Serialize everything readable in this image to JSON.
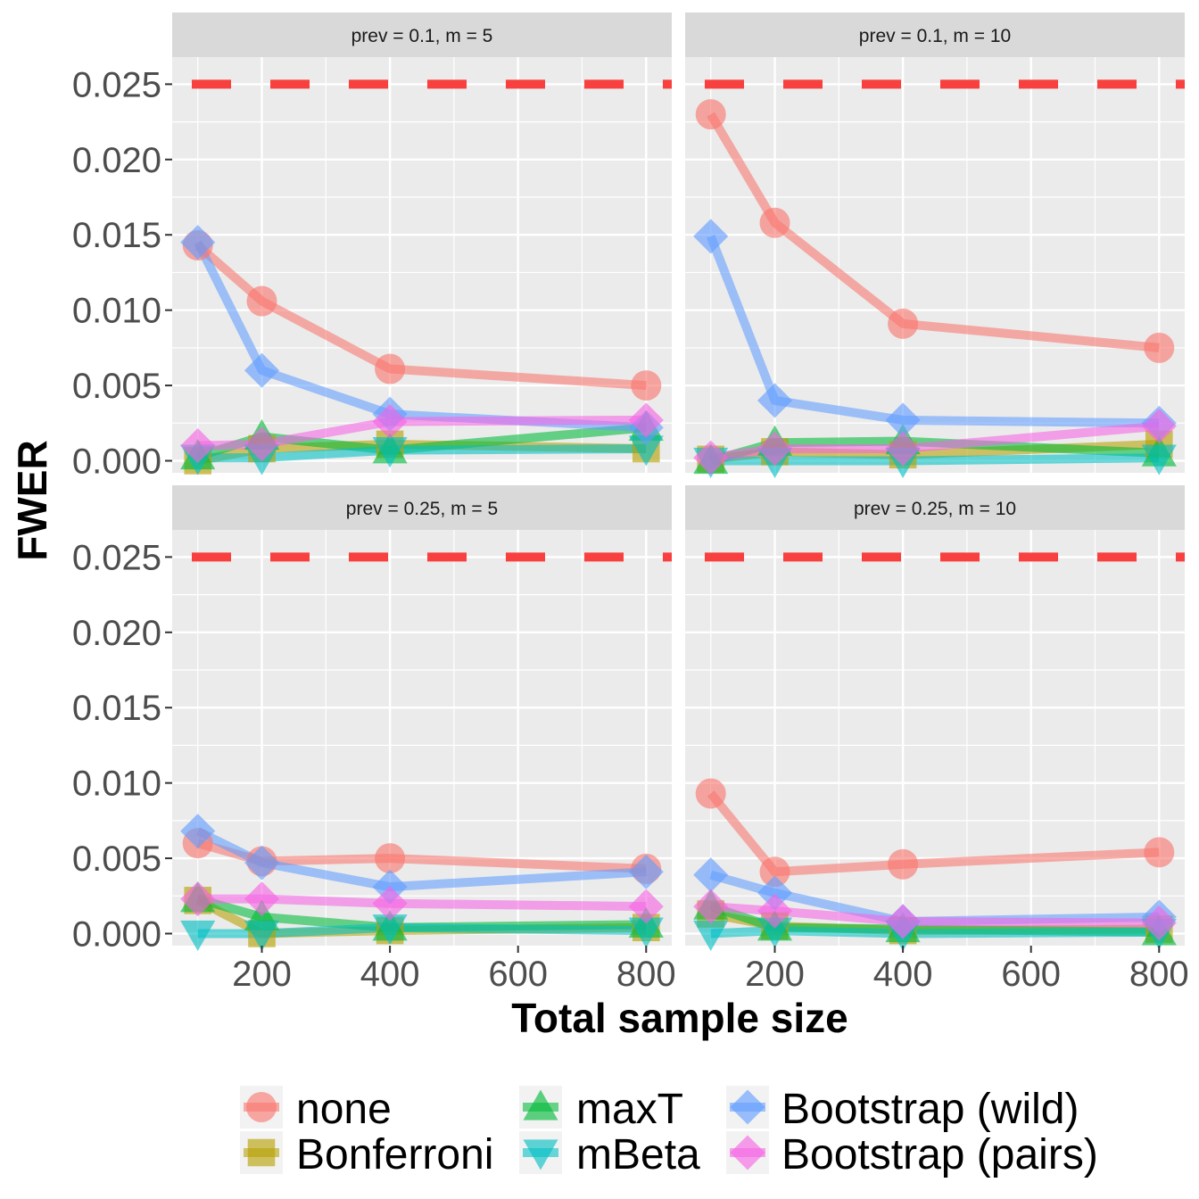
{
  "chart_data": {
    "type": "line",
    "xlabel": "Total sample size",
    "ylabel": "FWER",
    "xlim": [
      60,
      840
    ],
    "ylim": [
      -0.0008,
      0.0268
    ],
    "xticks": [
      200,
      400,
      600,
      800
    ],
    "xtick_labels": [
      "200",
      "400",
      "600",
      "800"
    ],
    "yticks": [
      0,
      0.005,
      0.01,
      0.015,
      0.02,
      0.025
    ],
    "ytick_labels": [
      "0.000",
      "0.005",
      "0.010",
      "0.015",
      "0.020",
      "0.025"
    ],
    "reference_line": {
      "y": 0.025,
      "style": "dashed",
      "color": "#f8403e"
    },
    "grid": true,
    "legend_position": "bottom",
    "series_styles": [
      {
        "name": "none",
        "color": "#F8766D",
        "shape": "circle"
      },
      {
        "name": "Bonferroni",
        "color": "#B79F00",
        "shape": "square"
      },
      {
        "name": "maxT",
        "color": "#00BA38",
        "shape": "triangle-up"
      },
      {
        "name": "mBeta",
        "color": "#00BFC4",
        "shape": "triangle-down"
      },
      {
        "name": "Bootstrap (wild)",
        "color": "#619CFF",
        "shape": "diamond"
      },
      {
        "name": "Bootstrap (pairs)",
        "color": "#F564E3",
        "shape": "diamond"
      }
    ],
    "panels": [
      {
        "label": "prev =  0.1, m =  5",
        "x": [
          100,
          200,
          400,
          800
        ],
        "series": [
          {
            "name": "none",
            "values": [
              0.0143,
              0.0106,
              0.0061,
              0.005
            ]
          },
          {
            "name": "Bonferroni",
            "values": [
              0.0,
              0.0008,
              0.0011,
              0.0008
            ]
          },
          {
            "name": "maxT",
            "values": [
              0.0003,
              0.0016,
              0.0007,
              0.0022
            ]
          },
          {
            "name": "mBeta",
            "values": [
              0.0002,
              0.0002,
              0.0007,
              0.0008
            ]
          },
          {
            "name": "Bootstrap (wild)",
            "values": [
              0.0145,
              0.006,
              0.0031,
              0.0022
            ]
          },
          {
            "name": "Bootstrap (pairs)",
            "values": [
              0.001,
              0.0011,
              0.0026,
              0.0027
            ]
          }
        ]
      },
      {
        "label": "prev =  0.1, m =  10",
        "x": [
          100,
          200,
          400,
          800
        ],
        "series": [
          {
            "name": "none",
            "values": [
              0.023,
              0.0158,
              0.0091,
              0.0075
            ]
          },
          {
            "name": "Bonferroni",
            "values": [
              0.0001,
              0.0006,
              0.0004,
              0.0011
            ]
          },
          {
            "name": "maxT",
            "values": [
              0.0,
              0.0012,
              0.0013,
              0.0005
            ]
          },
          {
            "name": "mBeta",
            "values": [
              0.0,
              0.0,
              0.0,
              0.0002
            ]
          },
          {
            "name": "Bootstrap (wild)",
            "values": [
              0.0149,
              0.004,
              0.0027,
              0.0025
            ]
          },
          {
            "name": "Bootstrap (pairs)",
            "values": [
              0.0002,
              0.0008,
              0.0008,
              0.0023
            ]
          }
        ]
      },
      {
        "label": "prev =  0.25, m =  5",
        "x": [
          100,
          200,
          400,
          800
        ],
        "series": [
          {
            "name": "none",
            "values": [
              0.006,
              0.0048,
              0.005,
              0.0043
            ]
          },
          {
            "name": "Bonferroni",
            "values": [
              0.0022,
              0.0,
              0.0002,
              0.0004
            ]
          },
          {
            "name": "maxT",
            "values": [
              0.0023,
              0.0011,
              0.0004,
              0.0006
            ]
          },
          {
            "name": "mBeta",
            "values": [
              0.0,
              0.0,
              0.0004,
              0.0002
            ]
          },
          {
            "name": "Bootstrap (wild)",
            "values": [
              0.0068,
              0.0047,
              0.0031,
              0.0041
            ]
          },
          {
            "name": "Bootstrap (pairs)",
            "values": [
              0.0023,
              0.0023,
              0.002,
              0.0018
            ]
          }
        ]
      },
      {
        "label": "prev =  0.25, m =  10",
        "x": [
          100,
          200,
          400,
          800
        ],
        "series": [
          {
            "name": "none",
            "values": [
              0.0093,
              0.0041,
              0.0046,
              0.0054
            ]
          },
          {
            "name": "Bonferroni",
            "values": [
              0.0013,
              0.0005,
              0.0002,
              0.0003
            ]
          },
          {
            "name": "maxT",
            "values": [
              0.0018,
              0.0004,
              0.0003,
              0.0001
            ]
          },
          {
            "name": "mBeta",
            "values": [
              0.0,
              0.0002,
              0.0,
              0.0001
            ]
          },
          {
            "name": "Bootstrap (wild)",
            "values": [
              0.0039,
              0.0027,
              0.0008,
              0.0011
            ]
          },
          {
            "name": "Bootstrap (pairs)",
            "values": [
              0.0018,
              0.0015,
              0.0008,
              0.0007
            ]
          }
        ]
      }
    ]
  }
}
